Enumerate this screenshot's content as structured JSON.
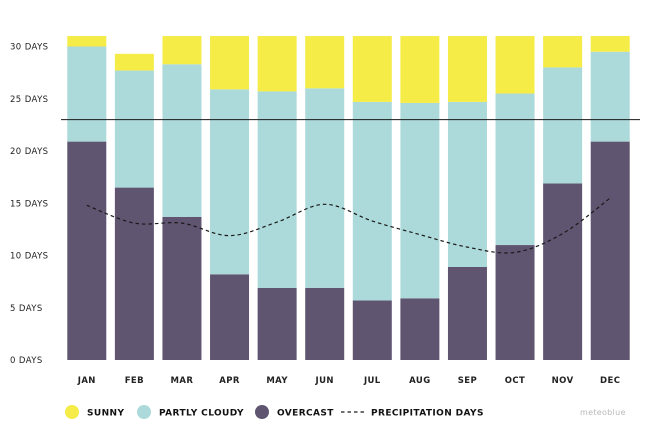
{
  "chart_data": {
    "type": "bar",
    "stacked": true,
    "categories": [
      "JAN",
      "FEB",
      "MAR",
      "APR",
      "MAY",
      "JUN",
      "JUL",
      "AUG",
      "SEP",
      "OCT",
      "NOV",
      "DEC"
    ],
    "series": [
      {
        "name": "OVERCAST",
        "color": "#5f5570",
        "values": [
          20.9,
          16.5,
          13.7,
          8.2,
          6.9,
          6.9,
          5.7,
          5.9,
          8.9,
          11.0,
          16.9,
          20.9
        ]
      },
      {
        "name": "PARTLY CLOUDY",
        "color": "#acd9d9",
        "values": [
          9.1,
          11.2,
          14.6,
          17.7,
          18.8,
          19.1,
          19.0,
          18.7,
          15.8,
          14.5,
          11.1,
          8.6
        ]
      },
      {
        "name": "SUNNY",
        "color": "#f5ec48",
        "values": [
          1.0,
          1.6,
          2.7,
          5.1,
          5.3,
          5.0,
          6.3,
          6.4,
          6.3,
          5.5,
          3.0,
          1.5
        ]
      }
    ],
    "line_series": {
      "name": "PRECIPITATION DAYS",
      "values": [
        14.8,
        13.1,
        13.1,
        11.9,
        13.2,
        14.9,
        13.3,
        12.0,
        10.8,
        10.3,
        12.1,
        15.5
      ],
      "style": "dashed",
      "color": "#1a1a1a"
    },
    "reference_line": {
      "value": 23.0,
      "color": "#1a1a1a"
    },
    "ylim": [
      0,
      31
    ],
    "yticks": [
      {
        "value": 0,
        "label": "0 DAYS"
      },
      {
        "value": 5,
        "label": "5 DAYS"
      },
      {
        "value": 10,
        "label": "10 DAYS"
      },
      {
        "value": 15,
        "label": "15 DAYS"
      },
      {
        "value": 20,
        "label": "20 DAYS"
      },
      {
        "value": 25,
        "label": "25 DAYS"
      },
      {
        "value": 30,
        "label": "30 DAYS"
      }
    ],
    "grid": false,
    "legend_position": "bottom-left",
    "legend": [
      {
        "label": "SUNNY",
        "marker": "circle",
        "color": "#f5ec48"
      },
      {
        "label": "PARTLY CLOUDY",
        "marker": "circle",
        "color": "#acd9d9"
      },
      {
        "label": "OVERCAST",
        "marker": "circle",
        "color": "#5f5570"
      },
      {
        "label": "PRECIPITATION DAYS",
        "marker": "dashed-line",
        "color": "#1a1a1a"
      }
    ],
    "watermark": "meteoblue"
  }
}
